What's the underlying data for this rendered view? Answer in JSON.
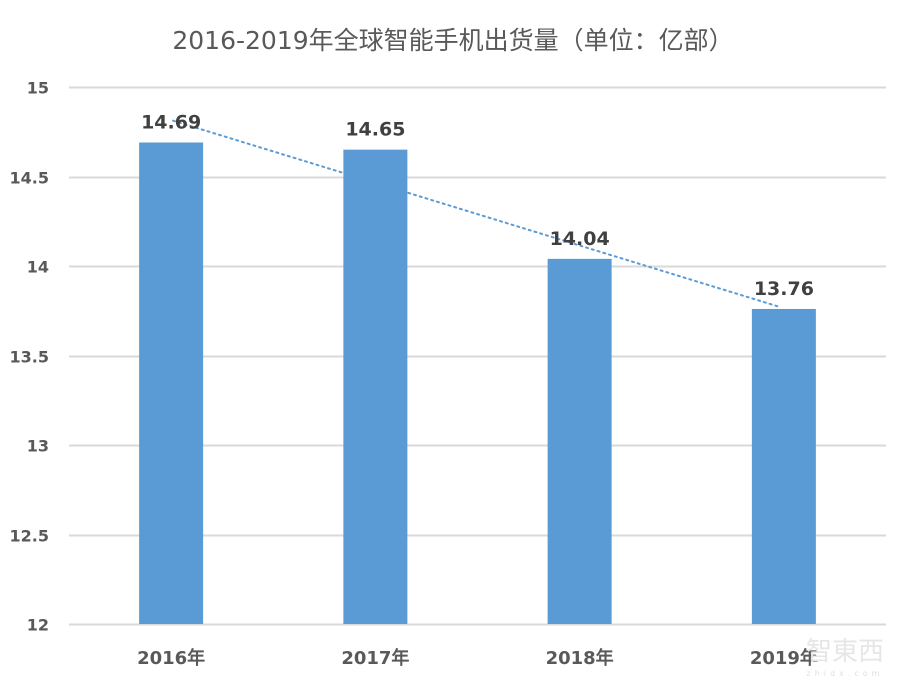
{
  "chart_data": {
    "type": "bar",
    "title": "2016-2019年全球智能手机出货量（单位：亿部）",
    "categories": [
      "2016年",
      "2017年",
      "2018年",
      "2019年"
    ],
    "values": [
      14.69,
      14.65,
      14.04,
      13.76
    ],
    "data_labels": [
      "14.69",
      "14.65",
      "14.04",
      "13.76"
    ],
    "xlabel": "",
    "ylabel": "",
    "ylim": [
      12,
      15
    ],
    "yticks": [
      15,
      14.5,
      14,
      13.5,
      13,
      12.5,
      12
    ],
    "ytick_labels": [
      "15",
      "14.5",
      "14",
      "13.5",
      "13",
      "12.5",
      "12"
    ],
    "grid": true,
    "legend": "none",
    "trendline": {
      "type": "linear",
      "style": "dotted",
      "color": "#5b9bd5"
    },
    "bar_color": "#5b9bd5",
    "gridline_color": "#d9d9d9"
  },
  "watermark": {
    "main": "智東西",
    "sub": "zhidx.com"
  }
}
